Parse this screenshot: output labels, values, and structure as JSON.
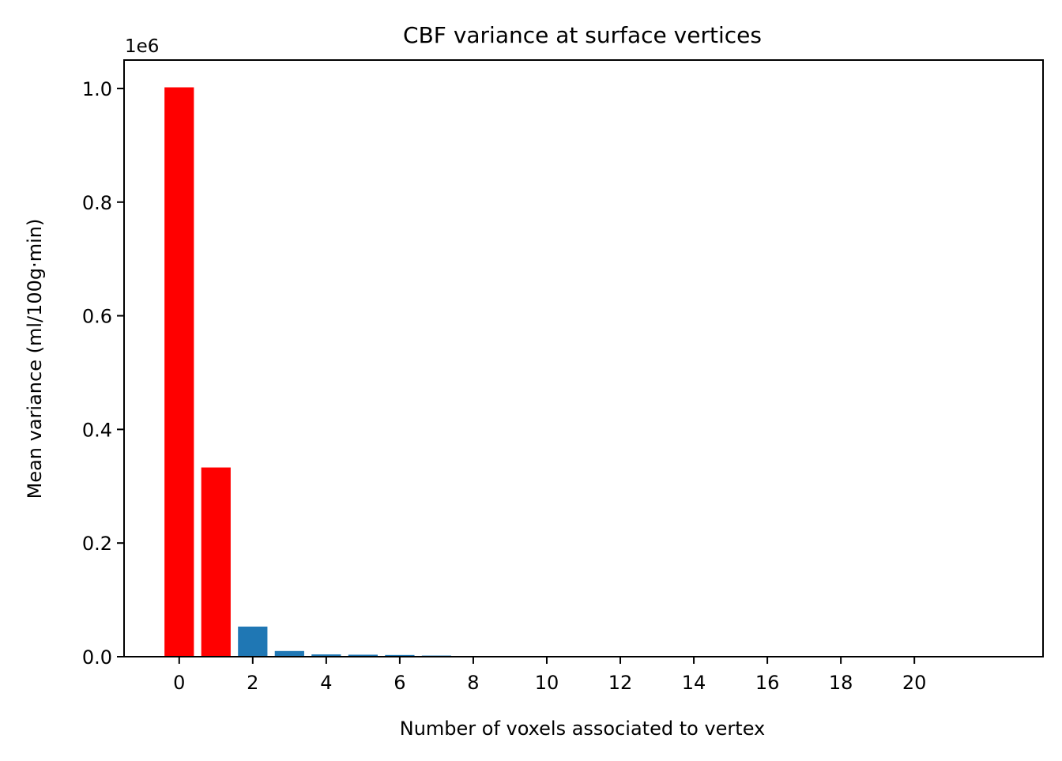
{
  "chart_data": {
    "type": "bar",
    "title": "CBF variance at surface vertices",
    "xlabel": "Number of voxels associated to vertex",
    "ylabel": "Mean variance (ml/100g·min)",
    "y_offset_label": "1e6",
    "y_multiplier": 1000000,
    "xlim": [
      -1.5,
      23.5
    ],
    "ylim": [
      0,
      1.05
    ],
    "x_ticks": [
      0,
      2,
      4,
      6,
      8,
      10,
      12,
      14,
      16,
      18,
      20
    ],
    "x_tick_labels": [
      "0",
      "2",
      "4",
      "6",
      "8",
      "10",
      "12",
      "14",
      "16",
      "18",
      "20"
    ],
    "y_ticks": [
      0,
      0.2,
      0.4,
      0.6,
      0.8,
      1.0
    ],
    "y_tick_labels": [
      "0.0",
      "0.2",
      "0.4",
      "0.6",
      "0.8",
      "1.0"
    ],
    "grid": false,
    "legend": "none",
    "x": [
      0,
      1,
      2,
      3,
      4,
      5,
      6,
      7,
      8,
      9,
      10,
      11,
      12,
      13,
      14,
      15,
      16,
      17,
      18,
      19,
      20,
      21,
      22
    ],
    "values": [
      1.002,
      0.333,
      0.053,
      0.01,
      0.004,
      0.0035,
      0.003,
      0.002,
      0.0012,
      0.001,
      0.0008,
      0.0007,
      0.0006,
      0.0005,
      0.0005,
      0.0004,
      0.0004,
      0.0003,
      0.0003,
      0.0003,
      0.0002,
      0.0002,
      0.0002
    ],
    "bar_colors": [
      "#ff0000",
      "#ff0000",
      "#1f77b4",
      "#1f77b4",
      "#1f77b4",
      "#1f77b4",
      "#1f77b4",
      "#1f77b4",
      "#1f77b4",
      "#1f77b4",
      "#1f77b4",
      "#1f77b4",
      "#1f77b4",
      "#1f77b4",
      "#1f77b4",
      "#1f77b4",
      "#1f77b4",
      "#1f77b4",
      "#1f77b4",
      "#1f77b4",
      "#1f77b4",
      "#1f77b4",
      "#1f77b4"
    ]
  }
}
